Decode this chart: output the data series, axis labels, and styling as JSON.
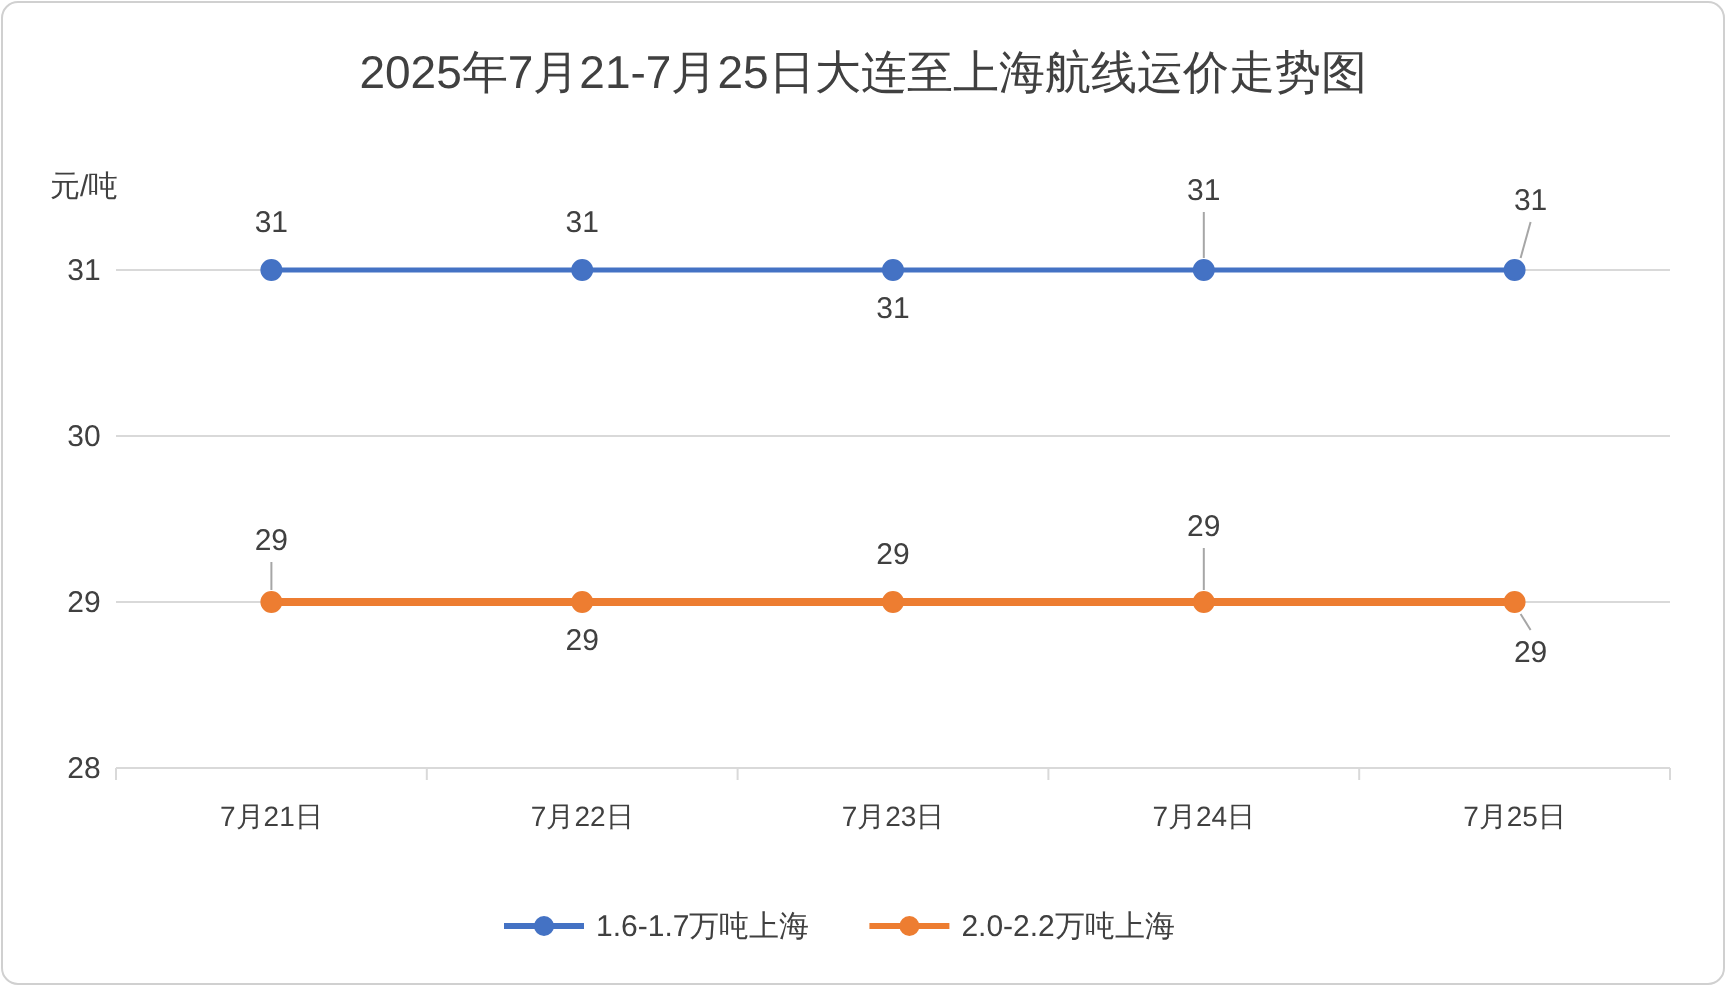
{
  "chart_data": {
    "type": "line",
    "title": "2025年7月21-7月25日大连至上海航线运价走势图",
    "ylabel": "元/吨",
    "categories": [
      "7月21日",
      "7月22日",
      "7月23日",
      "7月24日",
      "7月25日"
    ],
    "series": [
      {
        "name": "1.6-1.7万吨上海",
        "color": "#4472c4",
        "values": [
          31,
          31,
          31,
          31,
          31
        ]
      },
      {
        "name": "2.0-2.2万吨上海",
        "color": "#ed7d31",
        "values": [
          29,
          29,
          29,
          29,
          29
        ]
      }
    ],
    "ylim": [
      28,
      31
    ],
    "yticks": [
      28,
      29,
      30,
      31
    ],
    "grid": "y",
    "legend": "bottom",
    "marker": "circle",
    "line_style": "solid",
    "data_labels": true
  }
}
